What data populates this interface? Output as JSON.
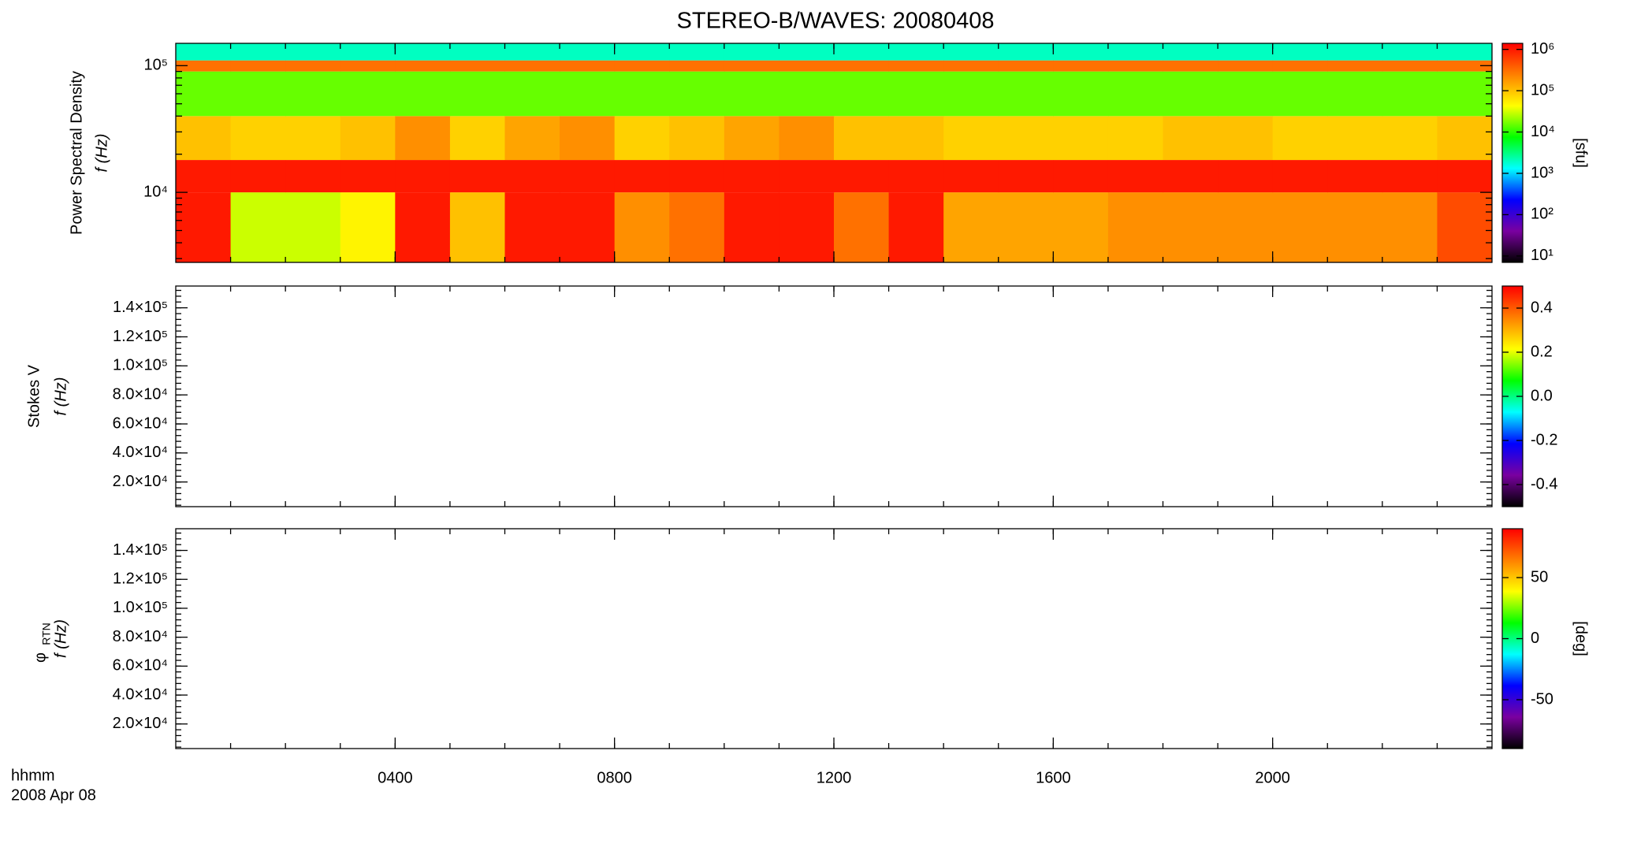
{
  "chart_data": [
    {
      "type": "heatmap",
      "title": "STEREO-B/WAVES: 20080408",
      "ylabel": "Power Spectral Density",
      "ylabel2": "f (Hz)",
      "ylog": true,
      "ylim": [
        2800,
        150000
      ],
      "yticks": [
        {
          "value": 10000,
          "label": "10⁴"
        },
        {
          "value": 100000,
          "label": "10⁵"
        }
      ],
      "xlim": [
        0,
        24
      ],
      "x_bins": [
        0,
        1,
        2,
        3,
        4,
        5,
        6,
        7,
        8,
        9,
        10,
        11,
        12,
        13,
        14,
        15,
        16,
        17,
        18,
        19,
        20,
        21,
        22,
        23,
        24
      ],
      "y_bins": [
        2800,
        10000,
        18000,
        40000,
        90000,
        110000,
        150000
      ],
      "values": [
        [
          1000000,
          30000,
          30000,
          50000,
          1000000,
          100000,
          1000000,
          1000000,
          200000,
          300000,
          1000000,
          1000000,
          300000,
          1000000,
          150000,
          150000,
          150000,
          200000,
          200000,
          200000,
          200000,
          200000,
          200000,
          500000
        ],
        [
          1000000,
          1000000,
          1000000,
          1000000,
          1000000,
          1000000,
          1000000,
          1000000,
          1000000,
          1000000,
          1000000,
          1000000,
          1000000,
          1000000,
          1000000,
          1000000,
          1000000,
          1000000,
          1000000,
          1000000,
          1000000,
          1000000,
          1000000,
          1000000
        ],
        [
          100000,
          80000,
          80000,
          100000,
          200000,
          80000,
          150000,
          200000,
          80000,
          100000,
          150000,
          200000,
          100000,
          100000,
          80000,
          80000,
          80000,
          80000,
          100000,
          100000,
          80000,
          80000,
          80000,
          100000
        ],
        [
          15000,
          15000,
          15000,
          15000,
          15000,
          15000,
          15000,
          15000,
          15000,
          15000,
          15000,
          15000,
          15000,
          15000,
          15000,
          15000,
          15000,
          15000,
          15000,
          15000,
          15000,
          15000,
          15000,
          15000
        ],
        [
          300000,
          300000,
          300000,
          300000,
          300000,
          300000,
          300000,
          300000,
          300000,
          300000,
          300000,
          300000,
          300000,
          300000,
          300000,
          300000,
          300000,
          300000,
          300000,
          300000,
          300000,
          300000,
          300000,
          300000
        ],
        [
          2000,
          2000,
          2000,
          2000,
          2000,
          2000,
          2000,
          2000,
          2000,
          2000,
          2000,
          2000,
          2000,
          2000,
          2000,
          2000,
          2000,
          2000,
          2000,
          2000,
          2000,
          2000,
          2000,
          2000
        ]
      ],
      "colormap": [
        "#000000",
        "#7a00a0",
        "#0000ff",
        "#00ffff",
        "#00ff00",
        "#ffff00",
        "#ff8000",
        "#ff0000"
      ],
      "colorbar": {
        "log": true,
        "zlim": [
          7,
          1400000
        ],
        "zticks": [
          {
            "value": 10,
            "label": "10¹"
          },
          {
            "value": 100,
            "label": "10²"
          },
          {
            "value": 1000,
            "label": "10³"
          },
          {
            "value": 10000,
            "label": "10⁴"
          },
          {
            "value": 100000,
            "label": "10⁵"
          },
          {
            "value": 1000000,
            "label": "10⁶"
          }
        ],
        "label": "[sfu]"
      }
    },
    {
      "type": "heatmap",
      "ylabel": "Stokes V",
      "ylabel2": "f (Hz)",
      "ylim": [
        3000,
        155000
      ],
      "yticks": [
        {
          "value": 20000,
          "label": "2.0×10⁴"
        },
        {
          "value": 40000,
          "label": "4.0×10⁴"
        },
        {
          "value": 60000,
          "label": "6.0×10⁴"
        },
        {
          "value": 80000,
          "label": "8.0×10⁴"
        },
        {
          "value": 100000,
          "label": "1.0×10⁵"
        },
        {
          "value": 120000,
          "label": "1.2×10⁵"
        },
        {
          "value": 140000,
          "label": "1.4×10⁵"
        }
      ],
      "xlim": [
        0,
        24
      ],
      "colorbar": {
        "zlim": [
          -0.5,
          0.5
        ],
        "zticks": [
          -0.4,
          -0.2,
          {
            "value": 0,
            "label": "0.0"
          },
          0.2,
          0.4
        ]
      }
    },
    {
      "type": "heatmap",
      "ylabel": "φ",
      "ylabel_sub": "RTN",
      "ylabel2": "f (Hz)",
      "ylim": [
        3000,
        155000
      ],
      "yticks": [
        {
          "value": 20000,
          "label": "2.0×10⁴"
        },
        {
          "value": 40000,
          "label": "4.0×10⁴"
        },
        {
          "value": 60000,
          "label": "6.0×10⁴"
        },
        {
          "value": 80000,
          "label": "8.0×10⁴"
        },
        {
          "value": 100000,
          "label": "1.0×10⁵"
        },
        {
          "value": 120000,
          "label": "1.2×10⁵"
        },
        {
          "value": 140000,
          "label": "1.4×10⁵"
        }
      ],
      "xlim": [
        0,
        24
      ],
      "xticks": [
        {
          "value": 4,
          "label": "0400"
        },
        {
          "value": 8,
          "label": "0800"
        },
        {
          "value": 12,
          "label": "1200"
        },
        {
          "value": 16,
          "label": "1600"
        },
        {
          "value": 20,
          "label": "2000"
        }
      ],
      "xlabel": "hhmm",
      "xlabel_date": "2008 Apr 08",
      "colorbar": {
        "zlim": [
          -90,
          90
        ],
        "zticks": [
          -50,
          0,
          50
        ],
        "label": "[deg]"
      }
    }
  ]
}
